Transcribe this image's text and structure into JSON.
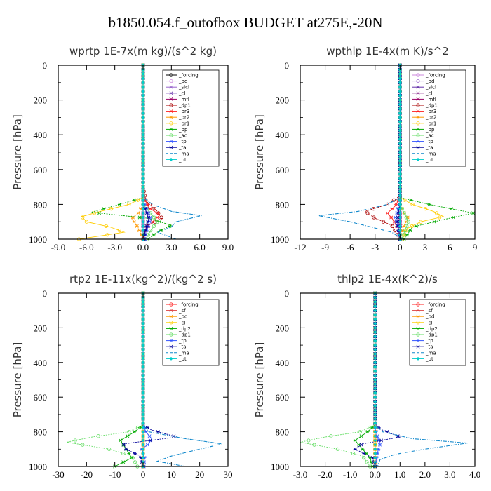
{
  "title": "b1850.054.f_outofbox  BUDGET at275E,-20N",
  "chart_data": [
    {
      "type": "line",
      "title": "wprtp   1E-7x(m kg)/(s^2 kg)",
      "xlabel": "",
      "ylabel": "Pressure [hPa]",
      "xlim": [
        -9,
        9
      ],
      "ylim": [
        1000,
        0
      ],
      "xticks": [
        "-9.0",
        "-6.0",
        "-3.0",
        "0.0",
        "3.0",
        "6.0",
        "9.0"
      ],
      "yticks": [
        "0",
        "200",
        "400",
        "600",
        "800",
        "1000"
      ],
      "legend": "top-right",
      "series": [
        {
          "name": "_forcing",
          "color": "#000000",
          "marker": "circle",
          "pressure": [
            0,
            850,
            1000
          ],
          "values": [
            0,
            0,
            0
          ]
        },
        {
          "name": "_pd",
          "color": "#cc88dd",
          "marker": "circle",
          "pressure": [
            0,
            850,
            1000
          ],
          "values": [
            0,
            0,
            0
          ]
        },
        {
          "name": "_sicl",
          "color": "#9966cc",
          "marker": "star",
          "pressure": [
            0,
            850,
            1000
          ],
          "values": [
            0,
            0,
            0
          ]
        },
        {
          "name": "_cl",
          "color": "#6633aa",
          "marker": "star",
          "pressure": [
            0,
            850,
            1000
          ],
          "values": [
            0,
            0,
            0
          ]
        },
        {
          "name": "_mfl",
          "color": "#990066",
          "marker": "star",
          "pressure": [
            0,
            850,
            1000
          ],
          "values": [
            0,
            0,
            0
          ]
        },
        {
          "name": "_dp1",
          "color": "#aa0000",
          "marker": "circle",
          "pressure": [
            0,
            700,
            780,
            840,
            880,
            920,
            960,
            1000
          ],
          "values": [
            0,
            0,
            0.3,
            1.5,
            2.0,
            0.5,
            0.1,
            0
          ]
        },
        {
          "name": "_pr3",
          "color": "#ff2222",
          "marker": "star",
          "pressure": [
            0,
            750,
            820,
            860,
            900,
            940,
            1000
          ],
          "values": [
            0,
            0,
            0.6,
            1.8,
            1.0,
            0.3,
            0
          ]
        },
        {
          "name": "_pr2",
          "color": "#ff9900",
          "marker": "star",
          "pressure": [
            0,
            800,
            850,
            880,
            920,
            960,
            1000
          ],
          "values": [
            0,
            0,
            -0.5,
            -1.2,
            -0.7,
            -0.3,
            0
          ]
        },
        {
          "name": "_pr1",
          "color": "#ffcc00",
          "marker": "circle",
          "pressure": [
            0,
            760,
            800,
            840,
            870,
            900,
            930,
            960,
            1000
          ],
          "values": [
            0,
            0,
            -1.5,
            -4.5,
            -6.5,
            -6.0,
            -3.5,
            -2.0,
            -6.8
          ]
        },
        {
          "name": "_bp",
          "color": "#00aa00",
          "marker": "star",
          "pressure": [
            0,
            760,
            800,
            845,
            880,
            920,
            960,
            1000
          ],
          "values": [
            0,
            0,
            -2.5,
            -5.5,
            0.5,
            3.0,
            1.5,
            0.5
          ]
        },
        {
          "name": "_ac",
          "color": "#66dd66",
          "marker": "circle",
          "pressure": [
            0,
            800,
            850,
            900,
            950,
            1000
          ],
          "values": [
            0,
            0,
            0.8,
            1.5,
            0.8,
            0.3
          ]
        },
        {
          "name": "_tp",
          "color": "#3355ff",
          "marker": "star",
          "pressure": [
            0,
            780,
            840,
            880,
            920,
            960,
            1000
          ],
          "values": [
            0,
            0,
            0.5,
            0.8,
            0.6,
            0.3,
            0.2
          ]
        },
        {
          "name": "_ta",
          "color": "#000099",
          "marker": "star",
          "pressure": [
            0,
            800,
            850,
            880,
            920,
            960,
            1000
          ],
          "values": [
            0,
            0,
            0.4,
            0.6,
            0.4,
            0.2,
            0.1
          ]
        },
        {
          "name": "_ma",
          "color": "#1188cc",
          "marker": "dash",
          "pressure": [
            0,
            760,
            800,
            840,
            865,
            900,
            930,
            960,
            1000
          ],
          "values": [
            0,
            0,
            1.0,
            3.0,
            6.2,
            3.5,
            3.0,
            1.5,
            3.5
          ]
        },
        {
          "name": "_bt",
          "color": "#00cccc",
          "marker": "diamond",
          "pressure": [
            0,
            850,
            1000
          ],
          "values": [
            0,
            0,
            0
          ]
        }
      ]
    },
    {
      "type": "line",
      "title": "wpthlp   1E-4x(m K)/s^2",
      "xlabel": "",
      "ylabel": "Pressure [hPa]",
      "xlim": [
        -12,
        9
      ],
      "ylim": [
        1000,
        0
      ],
      "xticks": [
        "-12",
        "-9",
        "-6",
        "-3",
        "0",
        "3",
        "6",
        "9"
      ],
      "yticks": [
        "0",
        "200",
        "400",
        "600",
        "800",
        "1000"
      ],
      "legend": "top-right",
      "series": [
        {
          "name": "_forcing",
          "color": "#cc88dd",
          "marker": "circle",
          "pressure": [
            0,
            850,
            1000
          ],
          "values": [
            0,
            0,
            0
          ]
        },
        {
          "name": "_pd",
          "color": "#9966cc",
          "marker": "circle",
          "pressure": [
            0,
            850,
            1000
          ],
          "values": [
            0,
            0,
            0
          ]
        },
        {
          "name": "_sicl",
          "color": "#6633aa",
          "marker": "star",
          "pressure": [
            0,
            850,
            1000
          ],
          "values": [
            0,
            0,
            0
          ]
        },
        {
          "name": "_cl",
          "color": "#882288",
          "marker": "star",
          "pressure": [
            0,
            850,
            1000
          ],
          "values": [
            0,
            0,
            0
          ]
        },
        {
          "name": "_mfl",
          "color": "#990066",
          "marker": "star",
          "pressure": [
            0,
            850,
            1000
          ],
          "values": [
            0,
            0,
            0
          ]
        },
        {
          "name": "_dp1",
          "color": "#aa0000",
          "marker": "circle",
          "pressure": [
            0,
            750,
            800,
            840,
            880,
            920,
            1000
          ],
          "values": [
            0,
            0,
            -1.5,
            -4.2,
            -3.0,
            -1.0,
            0
          ]
        },
        {
          "name": "_pr3",
          "color": "#ff2222",
          "marker": "star",
          "pressure": [
            0,
            760,
            810,
            850,
            890,
            940,
            1000
          ],
          "values": [
            0,
            0,
            -0.6,
            -1.5,
            -0.8,
            -0.2,
            0
          ]
        },
        {
          "name": "_pr2",
          "color": "#ff9900",
          "marker": "star",
          "pressure": [
            0,
            800,
            850,
            880,
            920,
            1000
          ],
          "values": [
            0,
            0,
            0.5,
            1.0,
            0.5,
            0
          ]
        },
        {
          "name": "_pr1",
          "color": "#ffcc00",
          "marker": "circle",
          "pressure": [
            0,
            760,
            800,
            840,
            870,
            900,
            940,
            1000
          ],
          "values": [
            0,
            0,
            1.5,
            4.0,
            5.2,
            2.5,
            0.8,
            0.3
          ]
        },
        {
          "name": "_bp",
          "color": "#00aa00",
          "marker": "star",
          "pressure": [
            0,
            760,
            800,
            850,
            890,
            930,
            1000
          ],
          "values": [
            0,
            0,
            3.5,
            8.8,
            5.0,
            1.5,
            0.5
          ]
        },
        {
          "name": "_ac",
          "color": "#66dd66",
          "marker": "circle",
          "pressure": [
            0,
            800,
            850,
            900,
            950,
            1000
          ],
          "values": [
            0,
            0,
            0.5,
            1.0,
            0.6,
            0.2
          ]
        },
        {
          "name": "_tp",
          "color": "#3355ff",
          "marker": "star",
          "pressure": [
            0,
            780,
            840,
            880,
            920,
            1000
          ],
          "values": [
            0,
            0,
            -0.3,
            -0.6,
            -0.3,
            0
          ]
        },
        {
          "name": "_ta",
          "color": "#000099",
          "marker": "star",
          "pressure": [
            0,
            800,
            850,
            900,
            1000
          ],
          "values": [
            0,
            0,
            -0.2,
            -0.3,
            0
          ]
        },
        {
          "name": "_ma",
          "color": "#1188cc",
          "marker": "dash",
          "pressure": [
            0,
            760,
            800,
            840,
            865,
            900,
            930,
            960,
            1000
          ],
          "values": [
            0,
            0,
            -1.5,
            -5.0,
            -9.8,
            -6.0,
            -3.5,
            -1.0,
            0.3
          ]
        },
        {
          "name": "_bt",
          "color": "#00cccc",
          "marker": "diamond",
          "pressure": [
            0,
            850,
            1000
          ],
          "values": [
            0,
            0,
            0
          ]
        }
      ]
    },
    {
      "type": "line",
      "title": "rtp2   1E-11x(kg^2)/(kg^2 s)",
      "xlabel": "",
      "ylabel": "Pressure [hPa]",
      "xlim": [
        -30,
        30
      ],
      "ylim": [
        1000,
        0
      ],
      "xticks": [
        "-30",
        "-20",
        "-10",
        "0",
        "10",
        "20",
        "30"
      ],
      "yticks": [
        "0",
        "200",
        "400",
        "600",
        "800",
        "1000"
      ],
      "legend": "top-right",
      "series": [
        {
          "name": "_forcing",
          "color": "#ff2222",
          "marker": "circle",
          "pressure": [
            0,
            850,
            1000
          ],
          "values": [
            0,
            0,
            0
          ]
        },
        {
          "name": "_sf",
          "color": "#dd4444",
          "marker": "star",
          "pressure": [
            0,
            850,
            1000
          ],
          "values": [
            0,
            0,
            0
          ]
        },
        {
          "name": "_pd",
          "color": "#ff9900",
          "marker": "star",
          "pressure": [
            0,
            850,
            1000
          ],
          "values": [
            0,
            0,
            0
          ]
        },
        {
          "name": "_cl",
          "color": "#ffcc00",
          "marker": "circle",
          "pressure": [
            0,
            850,
            1000
          ],
          "values": [
            0,
            0,
            0
          ]
        },
        {
          "name": "_dp2",
          "color": "#00aa00",
          "marker": "star",
          "pressure": [
            0,
            760,
            800,
            850,
            900,
            950,
            1000
          ],
          "values": [
            0,
            0,
            -3.0,
            -8.0,
            -6.0,
            -4.0,
            -10.0
          ]
        },
        {
          "name": "_dp1",
          "color": "#66dd66",
          "marker": "circle",
          "pressure": [
            0,
            760,
            800,
            830,
            860,
            900,
            940,
            1000
          ],
          "values": [
            0,
            0,
            -5.0,
            -18.0,
            -27.0,
            -12.0,
            -4.0,
            -2.0
          ]
        },
        {
          "name": "_tp",
          "color": "#3355ff",
          "marker": "star",
          "pressure": [
            0,
            760,
            800,
            840,
            870,
            900,
            950,
            1000
          ],
          "values": [
            0,
            0,
            1.0,
            3.0,
            2.0,
            -0.5,
            0.5,
            0.3
          ]
        },
        {
          "name": "_ta",
          "color": "#000099",
          "marker": "star",
          "pressure": [
            0,
            760,
            790,
            830,
            870,
            900,
            940,
            1000
          ],
          "values": [
            0,
            0,
            3.0,
            12.0,
            -7.0,
            -6.0,
            -1.0,
            0
          ]
        },
        {
          "name": "_ma",
          "color": "#1188cc",
          "marker": "dash",
          "pressure": [
            0,
            760,
            800,
            840,
            870,
            900,
            940,
            970,
            1000
          ],
          "values": [
            0,
            0,
            2.0,
            15.0,
            28.0,
            20.0,
            10.0,
            5.0,
            15.0
          ]
        },
        {
          "name": "_bt",
          "color": "#00cccc",
          "marker": "diamond",
          "pressure": [
            0,
            850,
            1000
          ],
          "values": [
            0,
            0,
            0
          ]
        }
      ]
    },
    {
      "type": "line",
      "title": "thlp2   1E-4x(K^2)/s",
      "xlabel": "",
      "ylabel": "Pressure [hPa]",
      "xlim": [
        -3,
        4
      ],
      "ylim": [
        1000,
        0
      ],
      "xticks": [
        "-3.0",
        "-2.0",
        "-1.0",
        "0.0",
        "1.0",
        "2.0",
        "3.0",
        "4.0"
      ],
      "yticks": [
        "0",
        "200",
        "400",
        "600",
        "800",
        "1000"
      ],
      "legend": "top-right",
      "series": [
        {
          "name": "_forcing",
          "color": "#ff2222",
          "marker": "circle",
          "pressure": [
            0,
            850,
            1000
          ],
          "values": [
            0,
            0,
            0
          ]
        },
        {
          "name": "_sf",
          "color": "#dd4444",
          "marker": "star",
          "pressure": [
            0,
            850,
            1000
          ],
          "values": [
            0,
            0,
            0
          ]
        },
        {
          "name": "_pd",
          "color": "#ff9900",
          "marker": "star",
          "pressure": [
            0,
            850,
            1000
          ],
          "values": [
            0,
            0,
            0
          ]
        },
        {
          "name": "_cl",
          "color": "#ffcc00",
          "marker": "circle",
          "pressure": [
            0,
            850,
            1000
          ],
          "values": [
            0,
            0,
            0
          ]
        },
        {
          "name": "_dp2",
          "color": "#00aa00",
          "marker": "star",
          "pressure": [
            0,
            760,
            800,
            850,
            900,
            950,
            1000
          ],
          "values": [
            0,
            0,
            -0.3,
            -0.8,
            -0.5,
            -0.2,
            -0.1
          ]
        },
        {
          "name": "_dp1",
          "color": "#66dd66",
          "marker": "circle",
          "pressure": [
            0,
            760,
            800,
            830,
            860,
            900,
            940,
            1000
          ],
          "values": [
            0,
            0,
            -0.6,
            -2.0,
            -3.0,
            -1.5,
            -0.5,
            -0.2
          ]
        },
        {
          "name": "_tp",
          "color": "#3355ff",
          "marker": "star",
          "pressure": [
            0,
            780,
            830,
            870,
            920,
            1000
          ],
          "values": [
            0,
            0,
            0.1,
            0.2,
            0.1,
            0
          ]
        },
        {
          "name": "_ta",
          "color": "#000099",
          "marker": "star",
          "pressure": [
            0,
            760,
            790,
            830,
            870,
            900,
            950,
            1000
          ],
          "values": [
            0,
            0,
            0.3,
            1.0,
            -0.5,
            -0.8,
            -0.1,
            0
          ]
        },
        {
          "name": "_ma",
          "color": "#1188cc",
          "marker": "dash",
          "pressure": [
            0,
            760,
            800,
            840,
            865,
            900,
            930,
            960,
            1000
          ],
          "values": [
            0,
            0,
            0.3,
            1.5,
            3.7,
            2.0,
            0.8,
            0.2,
            0.1
          ]
        },
        {
          "name": "_bt",
          "color": "#00cccc",
          "marker": "diamond",
          "pressure": [
            0,
            850,
            1000
          ],
          "values": [
            0,
            0,
            0
          ]
        }
      ]
    }
  ]
}
